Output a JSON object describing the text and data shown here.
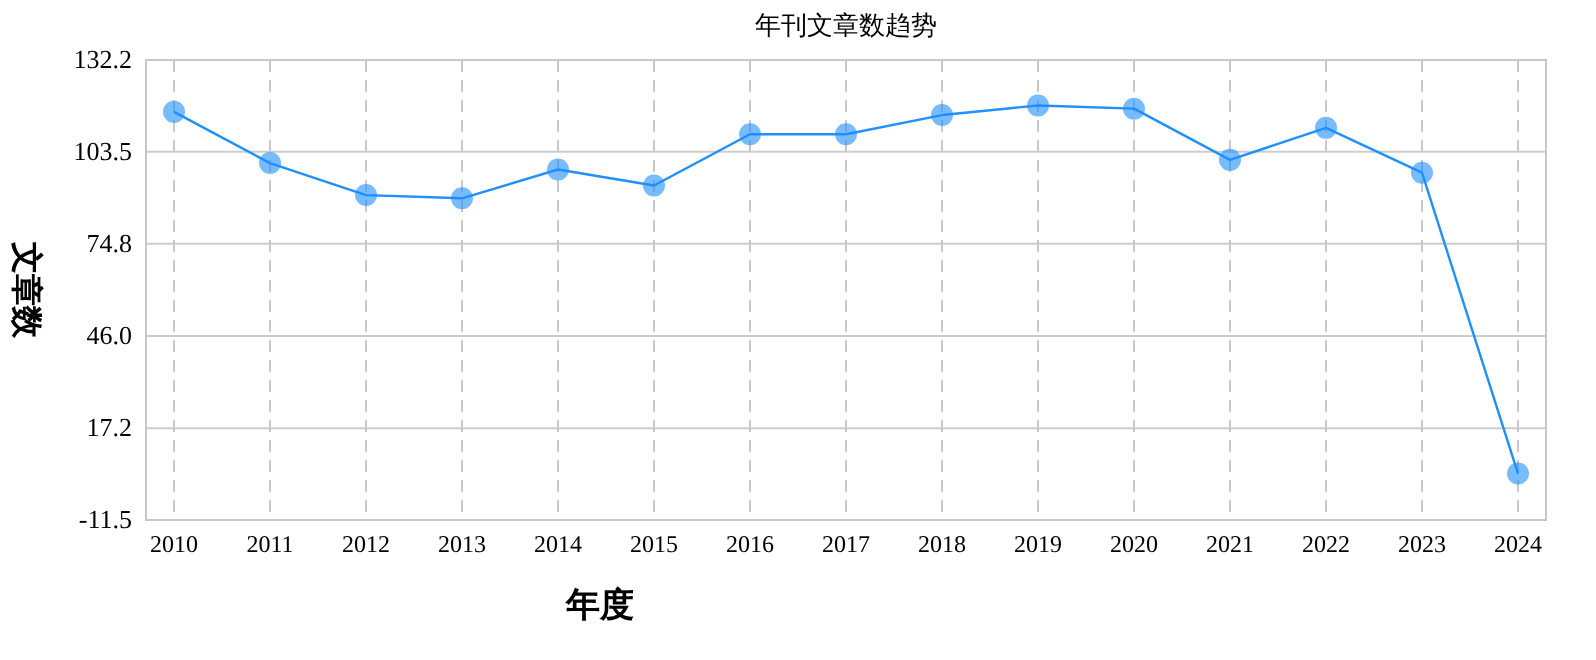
{
  "chart_data": {
    "type": "line",
    "title": "年刊文章数趋势",
    "xlabel": "年度",
    "ylabel": "文章数",
    "categories": [
      "2010",
      "2011",
      "2012",
      "2013",
      "2014",
      "2015",
      "2016",
      "2017",
      "2018",
      "2019",
      "2020",
      "2021",
      "2022",
      "2023",
      "2024"
    ],
    "series": [
      {
        "color": "#1e90ff",
        "values": [
          116,
          100,
          90,
          89,
          98,
          93,
          109,
          109,
          115,
          118,
          117,
          101,
          111,
          97,
          3
        ]
      }
    ],
    "ylim": [
      -11.5,
      132.2
    ],
    "yticks": [
      -11.5,
      17.2,
      {
        "value": 46,
        "label": "46.0"
      },
      74.8,
      103.5,
      132.2
    ],
    "grid": true,
    "marker": "circle",
    "line_style": "solid"
  }
}
